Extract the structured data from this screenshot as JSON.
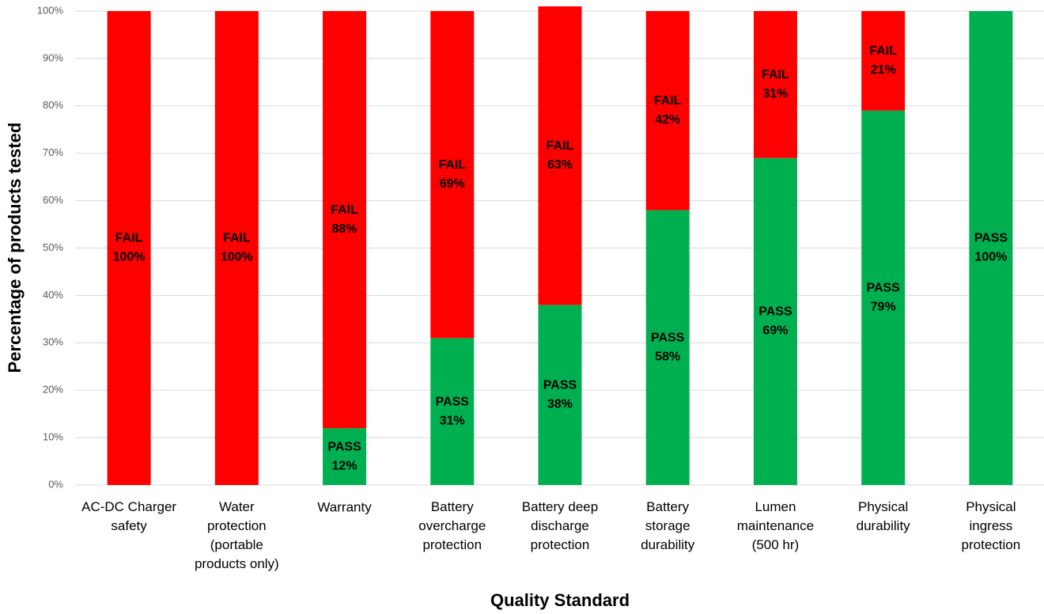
{
  "chart_data": {
    "type": "stacked_bar",
    "x_label": "Quality Standard",
    "y_label": "Percentage of products tested",
    "categories": [
      "AC-DC Charger\nsafety",
      "Water\nprotection\n(portable\nproducts only)",
      "Warranty",
      "Battery\novercharge\nprotection",
      "Battery deep\ndischarge\nprotection",
      "Battery\nstorage\ndurability",
      "Lumen\nmaintenance\n(500 hr)",
      "Physical\ndurability",
      "Physical\ningress\nprotection"
    ],
    "series": [
      {
        "name": "PASS",
        "color": "#00b050",
        "values": [
          0,
          0,
          12,
          31,
          38,
          58,
          69,
          79,
          100
        ],
        "value_labels": [
          null,
          null,
          "12%",
          "31%",
          "38%",
          "58%",
          "69%",
          "79%",
          "100%"
        ]
      },
      {
        "name": "FAIL",
        "color": "#ff0000",
        "values": [
          100,
          100,
          88,
          69,
          63,
          42,
          31,
          21,
          0
        ],
        "value_labels": [
          "100%",
          "100%",
          "88%",
          "69%",
          "63%",
          "42%",
          "31%",
          "21%",
          null
        ]
      }
    ],
    "ylim": [
      0,
      100
    ],
    "yticks": [
      {
        "value": 0,
        "label": "0%"
      },
      {
        "value": 10,
        "label": "10%"
      },
      {
        "value": 20,
        "label": "20%"
      },
      {
        "value": 30,
        "label": "30%"
      },
      {
        "value": 40,
        "label": "40%"
      },
      {
        "value": 50,
        "label": "50%"
      },
      {
        "value": 60,
        "label": "60%"
      },
      {
        "value": 70,
        "label": "70%"
      },
      {
        "value": 80,
        "label": "80%"
      },
      {
        "value": 90,
        "label": "90%"
      },
      {
        "value": 100,
        "label": "100%"
      }
    ],
    "grid": true
  }
}
